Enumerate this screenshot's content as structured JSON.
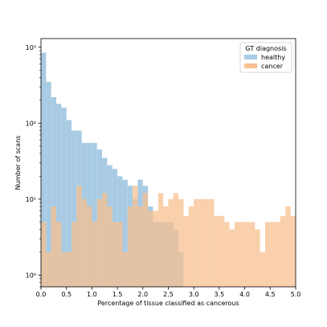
{
  "chart_data": {
    "type": "bar",
    "title": "",
    "xlabel": "Percentage of tissue classified as cancerous",
    "ylabel": "Number of scans",
    "y_scale": "log",
    "xlim": [
      0.0,
      5.0
    ],
    "ylim": [
      0.7,
      1300
    ],
    "bin_width": 0.1,
    "x_ticks": [
      0.0,
      0.5,
      1.0,
      1.5,
      2.0,
      2.5,
      3.0,
      3.5,
      4.0,
      4.5,
      5.0
    ],
    "x_tick_labels": [
      "0.0",
      "0.5",
      "1.0",
      "1.5",
      "2.0",
      "2.5",
      "3.0",
      "3.5",
      "4.0",
      "4.5",
      "5.0"
    ],
    "y_ticks": [
      1,
      10,
      100,
      1000
    ],
    "y_tick_labels": [
      "10⁰",
      "10¹",
      "10²",
      "10³"
    ],
    "grid": false,
    "legend": {
      "title": "GT diagnosis",
      "placement": "top-right"
    },
    "bin_starts": [
      0.0,
      0.1,
      0.2,
      0.3,
      0.4,
      0.5,
      0.6,
      0.7,
      0.8,
      0.9,
      1.0,
      1.1,
      1.2,
      1.3,
      1.4,
      1.5,
      1.6,
      1.7,
      1.8,
      1.9,
      2.0,
      2.1,
      2.2,
      2.3,
      2.4,
      2.5,
      2.6,
      2.7,
      2.8,
      2.9,
      3.0,
      3.1,
      3.2,
      3.3,
      3.4,
      3.5,
      3.6,
      3.7,
      3.8,
      3.9,
      4.0,
      4.1,
      4.2,
      4.3,
      4.4,
      4.5,
      4.6,
      4.7,
      4.8,
      4.9
    ],
    "series": [
      {
        "name": "healthy",
        "color": "#a8cbe3",
        "values": [
          850,
          350,
          220,
          180,
          160,
          110,
          80,
          80,
          55,
          55,
          55,
          45,
          35,
          28,
          25,
          20,
          18,
          15,
          10,
          18,
          15,
          8,
          5,
          5,
          5,
          5,
          4,
          2,
          0,
          0,
          0,
          0,
          0,
          0,
          0,
          0,
          0,
          0,
          0,
          0,
          0,
          0,
          0,
          0,
          0,
          0,
          0,
          0,
          0,
          0
        ]
      },
      {
        "name": "cancer",
        "color": "#f7c08f",
        "values": [
          5,
          2,
          8,
          5,
          2,
          2,
          5,
          15,
          10,
          8,
          5,
          10,
          12,
          8,
          5,
          5,
          2,
          8,
          15,
          8,
          12,
          7,
          7,
          12,
          8,
          10,
          12,
          10,
          6,
          8,
          10,
          10,
          10,
          10,
          6,
          6,
          5,
          4,
          5,
          5,
          5,
          5,
          4,
          2,
          5,
          5,
          5,
          6,
          8,
          6
        ]
      }
    ]
  }
}
